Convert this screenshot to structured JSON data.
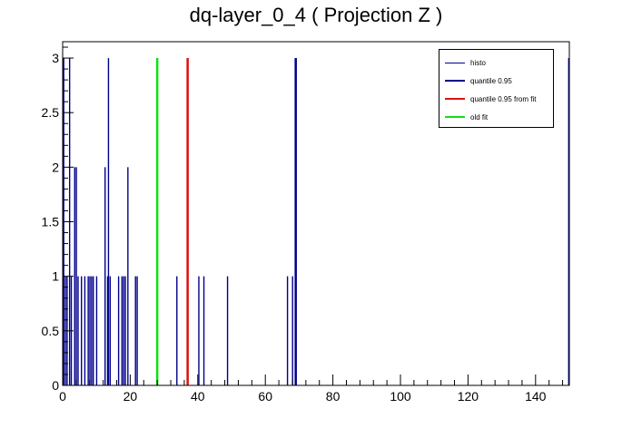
{
  "chart_data": {
    "type": "bar",
    "title": "dq-layer_0_4 ( Projection Z )",
    "xlabel": "",
    "ylabel": "",
    "xlim": [
      0,
      150
    ],
    "ylim": [
      0,
      3.15
    ],
    "x_ticks": [
      0,
      20,
      40,
      60,
      80,
      100,
      120,
      140
    ],
    "y_ticks": [
      0,
      0.5,
      1,
      1.5,
      2,
      2.5,
      3
    ],
    "x_tick_labels": [
      "0",
      "20",
      "40",
      "60",
      "80",
      "100",
      "120",
      "140"
    ],
    "y_tick_labels": [
      "0",
      "0.5",
      "1",
      "1.5",
      "2",
      "2.5",
      "3"
    ],
    "bin_width": 0.25,
    "histo": {
      "name": "histo",
      "color": "#00008b",
      "bins": [
        {
          "x": 0.25,
          "y": 3
        },
        {
          "x": 0.75,
          "y": 1
        },
        {
          "x": 1.25,
          "y": 1
        },
        {
          "x": 2.0,
          "y": 3
        },
        {
          "x": 2.5,
          "y": 1
        },
        {
          "x": 3.5,
          "y": 2
        },
        {
          "x": 4.0,
          "y": 2
        },
        {
          "x": 4.5,
          "y": 1
        },
        {
          "x": 5.5,
          "y": 1
        },
        {
          "x": 6.5,
          "y": 1
        },
        {
          "x": 7.5,
          "y": 1
        },
        {
          "x": 8.0,
          "y": 1
        },
        {
          "x": 8.5,
          "y": 1
        },
        {
          "x": 9.0,
          "y": 1
        },
        {
          "x": 10.0,
          "y": 1
        },
        {
          "x": 12.5,
          "y": 2
        },
        {
          "x": 13.25,
          "y": 1
        },
        {
          "x": 13.5,
          "y": 3
        },
        {
          "x": 14.0,
          "y": 1
        },
        {
          "x": 16.5,
          "y": 1
        },
        {
          "x": 17.5,
          "y": 1
        },
        {
          "x": 18.0,
          "y": 1
        },
        {
          "x": 18.5,
          "y": 1
        },
        {
          "x": 19.25,
          "y": 2
        },
        {
          "x": 21.5,
          "y": 1
        },
        {
          "x": 22.0,
          "y": 1
        },
        {
          "x": 33.75,
          "y": 1
        },
        {
          "x": 40.25,
          "y": 1
        },
        {
          "x": 41.75,
          "y": 1
        },
        {
          "x": 48.75,
          "y": 1
        },
        {
          "x": 66.5,
          "y": 1
        },
        {
          "x": 68.0,
          "y": 1
        },
        {
          "x": 69.0,
          "y": 3
        },
        {
          "x": 149.75,
          "y": 3
        }
      ]
    },
    "lines": [
      {
        "name": "quantile 0.95",
        "x": 69.0,
        "color": "#00008b"
      },
      {
        "name": "quantile 0.95 from fit",
        "x": 37.0,
        "color": "#e01010"
      },
      {
        "name": "old fit",
        "x": 28.0,
        "color": "#10e010"
      }
    ],
    "legend": {
      "position": "top-right",
      "entries": [
        "histo",
        "quantile 0.95",
        "quantile 0.95 from fit",
        "old fit"
      ]
    },
    "grid": false
  }
}
